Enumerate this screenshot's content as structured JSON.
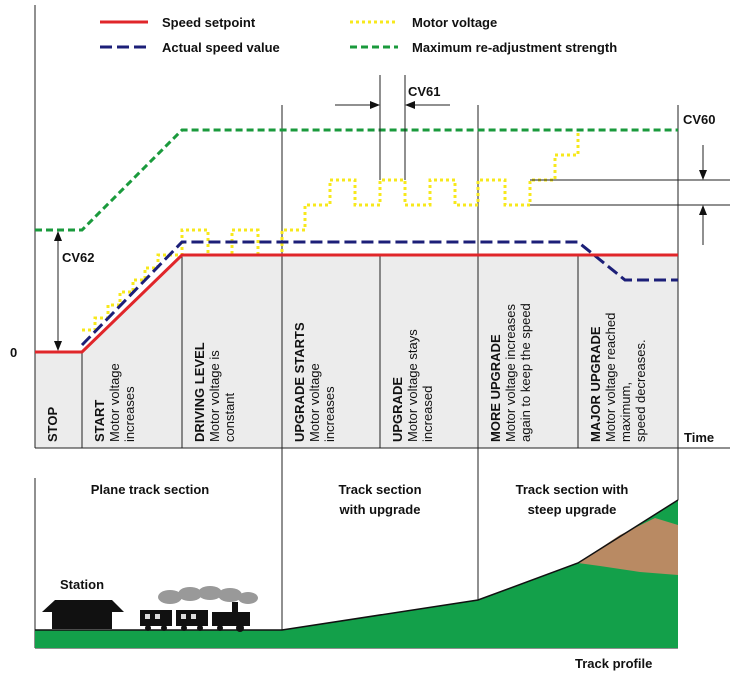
{
  "legend": [
    {
      "label": "Speed setpoint"
    },
    {
      "label": "Actual speed value"
    },
    {
      "label": "Motor voltage"
    },
    {
      "label": "Maximum re-adjustment strength"
    }
  ],
  "annotations": {
    "cv61": "CV61",
    "cv60": "CV60",
    "cv62": "CV62",
    "zero": "0",
    "time": "Time"
  },
  "phases": [
    {
      "title": "STOP",
      "lines": []
    },
    {
      "title": "START",
      "lines": [
        "Motor voltage",
        "increases"
      ]
    },
    {
      "title": "DRIVING LEVEL",
      "lines": [
        "Motor voltage is",
        "constant"
      ]
    },
    {
      "title": "UPGRADE STARTS",
      "lines": [
        "Motor voltage",
        "increases"
      ]
    },
    {
      "title": "UPGRADE",
      "lines": [
        "Motor voltage stays",
        "increased"
      ]
    },
    {
      "title": "MORE UPGRADE",
      "lines": [
        "Motor voltage increases",
        "again to keep the speed"
      ]
    },
    {
      "title": "MAJOR UPGRADE",
      "lines": [
        "Motor voltage reached",
        "maximum,",
        "speed decreases."
      ]
    }
  ],
  "track": {
    "sections": [
      {
        "lines": [
          "Plane track section"
        ]
      },
      {
        "lines": [
          "Track section",
          "with upgrade"
        ]
      },
      {
        "lines": [
          "Track section with",
          "steep upgrade"
        ]
      }
    ],
    "station": "Station",
    "axis_label": "Track profile"
  }
}
